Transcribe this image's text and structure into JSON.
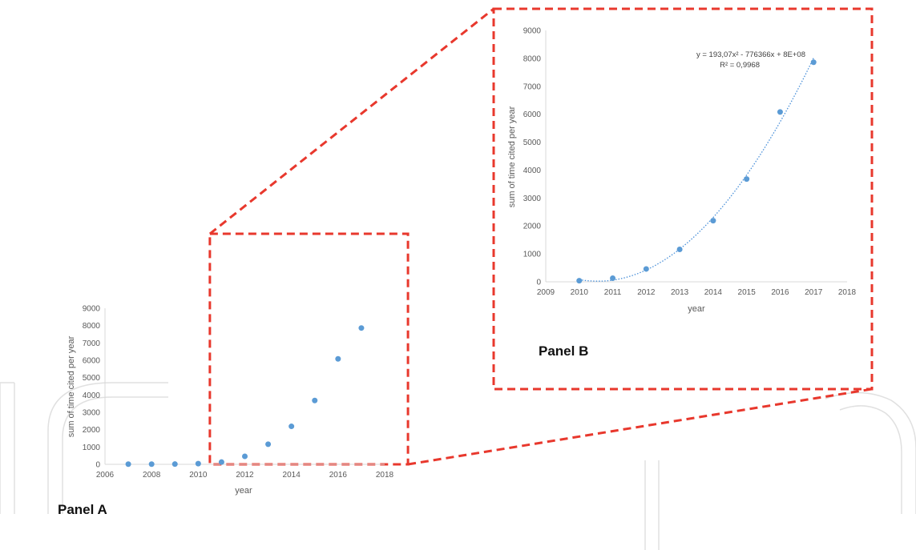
{
  "colors": {
    "marker": "#5b9bd5",
    "trendline": "#4a90d9",
    "callout": "#e8382d",
    "axis": "#d9d9d9",
    "watermark": "#dddddd"
  },
  "watermark": {
    "kind": "logo-outline"
  },
  "chart_data": [
    {
      "type": "scatter",
      "panel_label": "Panel A",
      "xlabel": "year",
      "ylabel": "sum of time cited per year",
      "xlim": [
        2006,
        2018
      ],
      "ylim": [
        0,
        9000
      ],
      "x_ticks": [
        2006,
        2008,
        2010,
        2012,
        2014,
        2016,
        2018
      ],
      "y_ticks": [
        0,
        1000,
        2000,
        3000,
        4000,
        5000,
        6000,
        7000,
        8000,
        9000
      ],
      "grid": false,
      "series": [
        {
          "x": [
            2007,
            2008,
            2009,
            2010,
            2011,
            2012,
            2013,
            2014,
            2015,
            2016,
            2017
          ],
          "y": [
            10,
            10,
            15,
            40,
            130,
            460,
            1160,
            2190,
            3680,
            6080,
            7860
          ]
        }
      ],
      "zoom_region": {
        "x": [
          2010.5,
          2019
        ],
        "y": [
          0,
          9000
        ]
      }
    },
    {
      "type": "scatter",
      "panel_label": "Panel B",
      "xlabel": "year",
      "ylabel": "sum of time cited per year",
      "xlim": [
        2009,
        2018
      ],
      "ylim": [
        0,
        9000
      ],
      "x_ticks": [
        2009,
        2010,
        2011,
        2012,
        2013,
        2014,
        2015,
        2016,
        2017,
        2018
      ],
      "y_ticks": [
        0,
        1000,
        2000,
        3000,
        4000,
        5000,
        6000,
        7000,
        8000,
        9000
      ],
      "grid": false,
      "series": [
        {
          "x": [
            2010,
            2011,
            2012,
            2013,
            2014,
            2015,
            2016,
            2017
          ],
          "y": [
            40,
            130,
            460,
            1160,
            2190,
            3680,
            6080,
            7860
          ]
        }
      ],
      "trendline": {
        "kind": "polynomial",
        "order": 2,
        "style": "dotted",
        "equation": "y = 193,07x² - 776366x + 8E+08",
        "r_squared": "R² = 0,9968",
        "x_range": [
          2010,
          2017
        ]
      }
    }
  ]
}
